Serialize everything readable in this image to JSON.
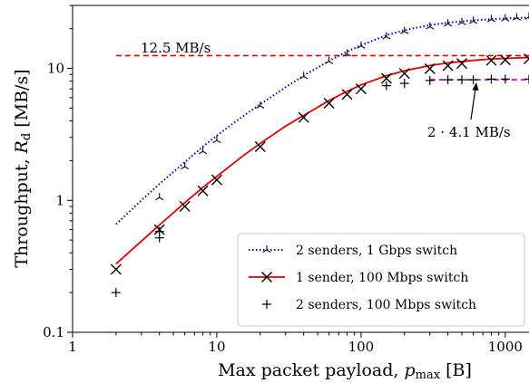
{
  "chart_data": {
    "type": "scatter",
    "x_scale": "log",
    "y_scale": "log",
    "xlim": [
      1,
      1460
    ],
    "ylim": [
      0.1,
      30
    ],
    "grid": false,
    "legend_position": "lower-right",
    "xlabel_prefix": "Max packet payload, ",
    "xlabel_var": "p",
    "xlabel_sub": "max",
    "xlabel_suffix": " [B]",
    "ylabel_prefix": "Throughput, ",
    "ylabel_var": "R",
    "ylabel_sub": "d",
    "ylabel_suffix": " [MB/s]",
    "x_ticks": [
      {
        "value": 1,
        "label": "1"
      },
      {
        "value": 10,
        "label": "10"
      },
      {
        "value": 100,
        "label": "100"
      },
      {
        "value": 1000,
        "label": "1000"
      }
    ],
    "y_ticks": [
      {
        "value": 0.1,
        "label": "0.1"
      },
      {
        "value": 1,
        "label": "1"
      },
      {
        "value": 10,
        "label": "10"
      }
    ],
    "series": [
      {
        "name": "2 senders, 1 Gbps switch",
        "line_color": "#0000cc",
        "line_style": "dotted",
        "marker": "tri",
        "line_x": [
          2,
          3,
          4,
          6,
          8,
          10,
          15,
          20,
          30,
          40,
          60,
          80,
          100,
          150,
          200,
          300,
          400,
          600,
          800,
          1000,
          1460
        ],
        "line_y": [
          0.66,
          1.0,
          1.33,
          1.95,
          2.55,
          3.1,
          4.3,
          5.35,
          7.2,
          8.8,
          11.4,
          13.4,
          15.0,
          17.8,
          19.5,
          21.3,
          22.2,
          23.1,
          23.6,
          23.9,
          24.3
        ],
        "points_x": [
          4,
          6,
          8,
          10,
          20,
          40,
          60,
          80,
          100,
          150,
          200,
          300,
          400,
          500,
          600,
          800,
          1000,
          1200,
          1460
        ],
        "points_y": [
          1.05,
          1.8,
          2.35,
          2.85,
          5.2,
          8.7,
          11.3,
          12.9,
          14.8,
          17.4,
          19.1,
          20.7,
          21.8,
          22.3,
          22.8,
          23.5,
          23.8,
          24.2,
          24.5
        ]
      },
      {
        "name": "1 sender, 100 Mbps switch",
        "line_color": "#dd0000",
        "line_style": "solid",
        "marker": "x",
        "line_x": [
          2,
          3,
          4,
          6,
          8,
          10,
          15,
          20,
          30,
          40,
          60,
          80,
          100,
          150,
          200,
          300,
          400,
          600,
          800,
          1000,
          1460
        ],
        "line_y": [
          0.33,
          0.49,
          0.65,
          0.96,
          1.25,
          1.52,
          2.15,
          2.7,
          3.65,
          4.4,
          5.7,
          6.7,
          7.5,
          8.8,
          9.6,
          10.5,
          11.0,
          11.5,
          11.8,
          11.9,
          12.1
        ],
        "points_x": [
          2,
          4,
          6,
          8,
          10,
          20,
          40,
          60,
          80,
          100,
          150,
          200,
          300,
          400,
          500,
          800,
          1000,
          1460
        ],
        "points_y": [
          0.3,
          0.6,
          0.9,
          1.18,
          1.43,
          2.55,
          4.25,
          5.45,
          6.35,
          7.0,
          8.4,
          9.15,
          9.95,
          10.5,
          10.9,
          11.5,
          11.6,
          11.8
        ]
      },
      {
        "name": "2 senders, 100 Mbps switch",
        "marker": "plus",
        "points_x": [
          2,
          4,
          4,
          150,
          200,
          300,
          400,
          500,
          600,
          800,
          1000,
          1460
        ],
        "points_y": [
          0.2,
          0.52,
          0.58,
          7.4,
          7.7,
          8.1,
          8.2,
          8.2,
          8.2,
          8.3,
          8.3,
          8.3
        ]
      }
    ],
    "ref_lines": [
      {
        "label": "12.5 MB/s",
        "y": 12.5,
        "x_start": 2,
        "x_end": 1460,
        "color": "#dd0000",
        "style": "dashed"
      },
      {
        "label": "2 · 4.1 MB/s",
        "y": 8.2,
        "x_start": 300,
        "x_end": 1460,
        "color": "#aa00cc",
        "style": "dashed"
      }
    ]
  }
}
